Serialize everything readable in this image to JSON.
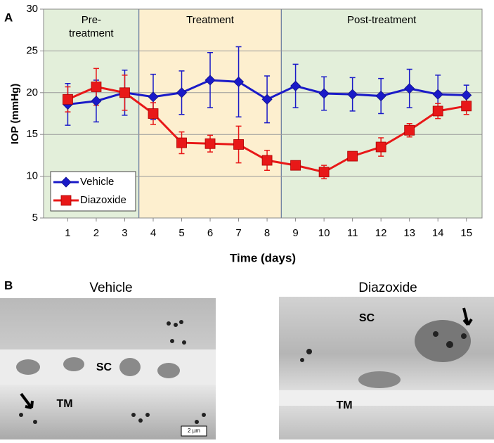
{
  "chart_data": {
    "type": "line",
    "panel_label": "A",
    "x_label": "Time (days)",
    "y_label": "IOP (mmHg)",
    "x": [
      1,
      2,
      3,
      4,
      5,
      6,
      7,
      8,
      9,
      10,
      11,
      12,
      13,
      14,
      15
    ],
    "xlim": [
      0.15,
      15.55
    ],
    "xticks": [
      1,
      2,
      3,
      4,
      5,
      6,
      7,
      8,
      9,
      10,
      11,
      12,
      13,
      14,
      15
    ],
    "ylim": [
      5,
      30
    ],
    "yticks": [
      5,
      10,
      15,
      20,
      25,
      30
    ],
    "grid": true,
    "legend": "lower left",
    "regions": [
      {
        "label": "Pre-treatment",
        "xlim": [
          0.15,
          3.5
        ],
        "color": "#e3efda"
      },
      {
        "label": "Treatment",
        "xlim": [
          3.5,
          8.5
        ],
        "color": "#fdefcf"
      },
      {
        "label": "Post-treatment",
        "xlim": [
          8.5,
          15.55
        ],
        "color": "#e3efda"
      }
    ],
    "series": [
      {
        "name": "Vehicle",
        "color": "#1a1ac8",
        "marker": "diamond",
        "values": [
          18.6,
          19.0,
          20.0,
          19.5,
          20.0,
          21.5,
          21.3,
          19.2,
          20.8,
          19.9,
          19.8,
          19.6,
          20.5,
          19.8,
          19.7
        ],
        "errors": [
          2.5,
          2.5,
          2.7,
          2.7,
          2.6,
          3.3,
          4.2,
          2.8,
          2.6,
          2.0,
          2.0,
          2.1,
          2.3,
          2.3,
          1.2
        ]
      },
      {
        "name": "Diazoxide",
        "color": "#e81818",
        "marker": "square",
        "values": [
          19.2,
          20.7,
          20.0,
          17.5,
          14.0,
          13.9,
          13.8,
          11.9,
          11.3,
          10.5,
          12.4,
          13.5,
          15.5,
          17.8,
          18.4
        ],
        "errors": [
          1.5,
          2.2,
          2.1,
          1.3,
          1.3,
          1.0,
          2.2,
          1.2,
          0.5,
          0.8,
          0.4,
          1.1,
          0.8,
          0.9,
          1.0
        ]
      }
    ]
  },
  "micrographs": {
    "panel_label": "B",
    "images": [
      {
        "title": "Vehicle",
        "labels": [
          "SC",
          "TM"
        ],
        "scale_bar": "2 µm"
      },
      {
        "title": "Diazoxide",
        "labels": [
          "SC",
          "TM"
        ]
      }
    ]
  }
}
